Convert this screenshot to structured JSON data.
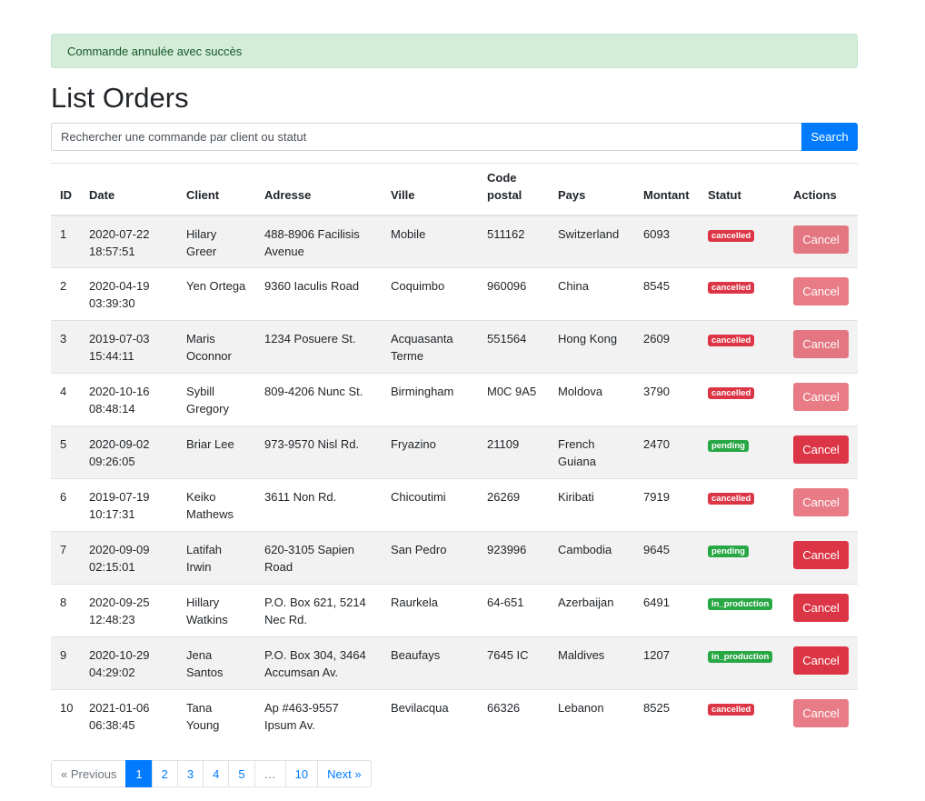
{
  "alert": {
    "message": "Commande annulée avec succès"
  },
  "page_title": "List Orders",
  "search": {
    "placeholder": "Rechercher une commande par client ou statut",
    "button_label": "Search"
  },
  "table": {
    "headers": [
      "ID",
      "Date",
      "Client",
      "Adresse",
      "Ville",
      "Code postal",
      "Pays",
      "Montant",
      "Statut",
      "Actions"
    ],
    "cancel_label": "Cancel",
    "rows": [
      {
        "id": "1",
        "date": "2020-07-22 18:57:51",
        "client": "Hilary Greer",
        "address": "488-8906 Facilisis Avenue",
        "city": "Mobile",
        "postal": "511162",
        "country": "Switzerland",
        "amount": "6093",
        "status": "cancelled"
      },
      {
        "id": "2",
        "date": "2020-04-19 03:39:30",
        "client": "Yen Ortega",
        "address": "9360 Iaculis Road",
        "city": "Coquimbo",
        "postal": "960096",
        "country": "China",
        "amount": "8545",
        "status": "cancelled"
      },
      {
        "id": "3",
        "date": "2019-07-03 15:44:11",
        "client": "Maris Oconnor",
        "address": "1234 Posuere St.",
        "city": "Acquasanta Terme",
        "postal": "551564",
        "country": "Hong Kong",
        "amount": "2609",
        "status": "cancelled"
      },
      {
        "id": "4",
        "date": "2020-10-16 08:48:14",
        "client": "Sybill Gregory",
        "address": "809-4206 Nunc St.",
        "city": "Birmingham",
        "postal": "M0C 9A5",
        "country": "Moldova",
        "amount": "3790",
        "status": "cancelled"
      },
      {
        "id": "5",
        "date": "2020-09-02 09:26:05",
        "client": "Briar Lee",
        "address": "973-9570 Nisl Rd.",
        "city": "Fryazino",
        "postal": "21109",
        "country": "French Guiana",
        "amount": "2470",
        "status": "pending"
      },
      {
        "id": "6",
        "date": "2019-07-19 10:17:31",
        "client": "Keiko Mathews",
        "address": "3611 Non Rd.",
        "city": "Chicoutimi",
        "postal": "26269",
        "country": "Kiribati",
        "amount": "7919",
        "status": "cancelled"
      },
      {
        "id": "7",
        "date": "2020-09-09 02:15:01",
        "client": "Latifah Irwin",
        "address": "620-3105 Sapien Road",
        "city": "San Pedro",
        "postal": "923996",
        "country": "Cambodia",
        "amount": "9645",
        "status": "pending"
      },
      {
        "id": "8",
        "date": "2020-09-25 12:48:23",
        "client": "Hillary Watkins",
        "address": "P.O. Box 621, 5214 Nec Rd.",
        "city": "Raurkela",
        "postal": "64-651",
        "country": "Azerbaijan",
        "amount": "6491",
        "status": "in_production"
      },
      {
        "id": "9",
        "date": "2020-10-29 04:29:02",
        "client": "Jena Santos",
        "address": "P.O. Box 304, 3464 Accumsan Av.",
        "city": "Beaufays",
        "postal": "7645 IC",
        "country": "Maldives",
        "amount": "1207",
        "status": "in_production"
      },
      {
        "id": "10",
        "date": "2021-01-06 06:38:45",
        "client": "Tana Young",
        "address": "Ap #463-9557 Ipsum Av.",
        "city": "Bevilacqua",
        "postal": "66326",
        "country": "Lebanon",
        "amount": "8525",
        "status": "cancelled"
      }
    ]
  },
  "pagination": {
    "previous": "« Previous",
    "pages": [
      "1",
      "2",
      "3",
      "4",
      "5",
      "…",
      "10"
    ],
    "active": "1",
    "next": "Next »"
  },
  "colors": {
    "primary": "#007bff",
    "danger": "#dc3545",
    "success": "#28a745",
    "alert_bg": "#d4edda",
    "alert_text": "#155724"
  }
}
